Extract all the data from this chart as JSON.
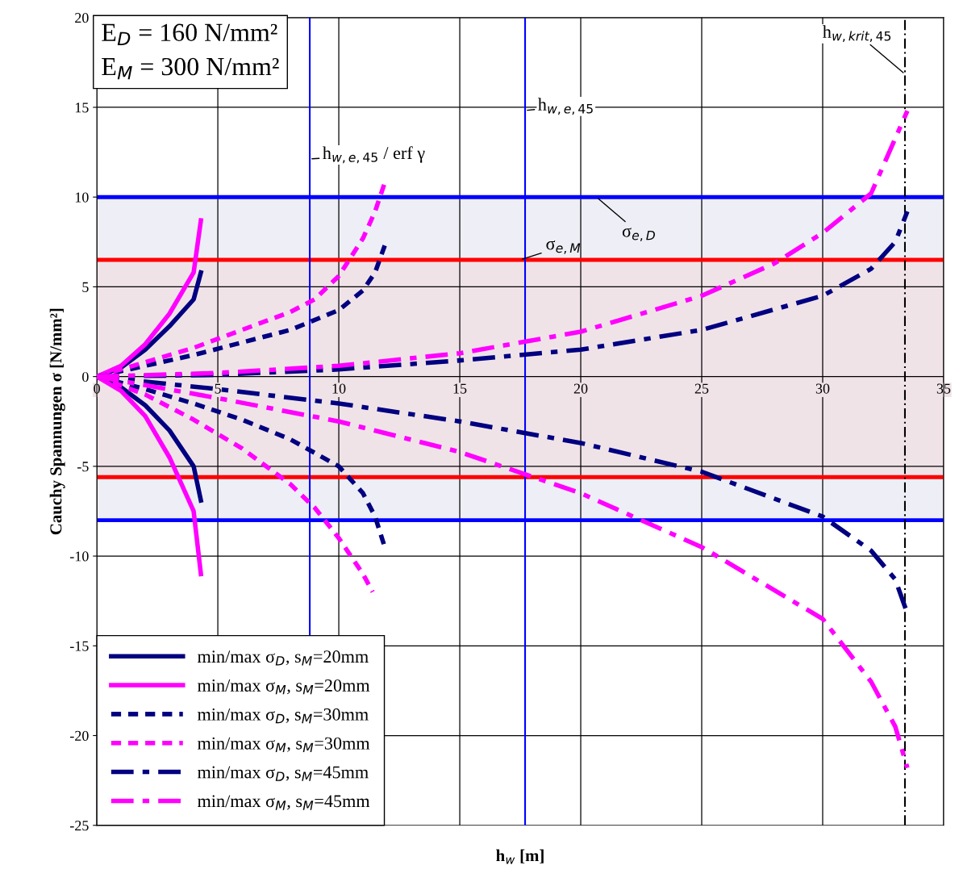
{
  "chart_data": {
    "type": "line",
    "xlabel": "h$_{w}$ [m]",
    "ylabel": "Cauchy Spannungen σ [N/mm²]",
    "xlim": [
      0,
      35
    ],
    "xticks": [
      0,
      5,
      10,
      15,
      20,
      25,
      30,
      35
    ],
    "ylim": [
      -25,
      20
    ],
    "yticks": [
      -25,
      -20,
      -15,
      -10,
      -5,
      0,
      5,
      10,
      15,
      20
    ],
    "grid": true,
    "legend": "bottom left",
    "marker": "none",
    "annotations": [
      "E$_{D}$ = 160 N/mm²",
      "E$_{M}$ = 300 N/mm²"
    ],
    "bands": [
      {
        "axis": "y",
        "from": -8,
        "to": 10,
        "color": "#eeeef7"
      },
      {
        "axis": "y",
        "from": -5.6,
        "to": 6.5,
        "color": "#f0e3e8"
      }
    ],
    "ref_lines": [
      {
        "axis": "y",
        "value": 10,
        "label": "σ$_{e,D}$",
        "color": "#0000ff",
        "line_style": "solid"
      },
      {
        "axis": "y",
        "value": 6.5,
        "label": "σ$_{e,M}$",
        "color": "#ff0000",
        "line_style": "solid"
      },
      {
        "axis": "y",
        "value": -5.6,
        "color": "#ff0000",
        "line_style": "solid"
      },
      {
        "axis": "y",
        "value": -8,
        "color": "#0000ff",
        "line_style": "solid"
      },
      {
        "axis": "x",
        "value": 8.8,
        "label": "h$_{w,e,45}$ / erf γ",
        "color": "#0000ff",
        "line_style": "solid"
      },
      {
        "axis": "x",
        "value": 17.7,
        "label": "h$_{w,e,45}$",
        "color": "#0000ff",
        "line_style": "solid"
      },
      {
        "axis": "x",
        "value": 33.4,
        "label": "h$_{w,krit,45}$",
        "color": "#000000",
        "line_style": "dashdot"
      }
    ],
    "series": [
      {
        "name": "min/max σ$_{D}$, s$_{M}$=20mm",
        "color": "#000080",
        "line_style": "solid",
        "x": [
          0,
          1,
          2,
          3,
          4,
          4.3
        ],
        "values": [
          0,
          0.5,
          1.5,
          2.8,
          4.3,
          5.8
        ]
      },
      {
        "color": "#000080",
        "line_style": "solid",
        "x": [
          0,
          1,
          2,
          3,
          4,
          4.3
        ],
        "values": [
          0,
          -0.6,
          -1.6,
          -3,
          -5,
          -6.9
        ]
      },
      {
        "name": "min/max σ$_{M}$, s$_{M}$=20mm",
        "color": "#ff00ff",
        "line_style": "solid",
        "x": [
          0,
          1,
          2,
          3,
          4,
          4.3
        ],
        "values": [
          0,
          0.6,
          1.8,
          3.5,
          5.8,
          8.7
        ]
      },
      {
        "color": "#ff00ff",
        "line_style": "solid",
        "x": [
          0,
          1,
          2,
          3,
          4,
          4.3
        ],
        "values": [
          0,
          -0.8,
          -2.2,
          -4.5,
          -7.5,
          -11
        ]
      },
      {
        "name": "min/max σ$_{D}$, s$_{M}$=30mm",
        "color": "#000080",
        "line_style": "dotted",
        "x": [
          0,
          2,
          4,
          6,
          8,
          10,
          11,
          11.5,
          11.9
        ],
        "values": [
          0,
          0.6,
          1.2,
          1.9,
          2.6,
          3.7,
          4.8,
          5.8,
          7.3
        ]
      },
      {
        "color": "#000080",
        "line_style": "dotted",
        "x": [
          0,
          2,
          4,
          6,
          8,
          10,
          11,
          11.5,
          11.9
        ],
        "values": [
          0,
          -0.7,
          -1.5,
          -2.4,
          -3.5,
          -5,
          -6.5,
          -7.8,
          -9.5
        ]
      },
      {
        "name": "min/max σ$_{M}$, s$_{M}$=30mm",
        "color": "#ff00ff",
        "line_style": "dotted",
        "x": [
          0,
          2,
          4,
          6,
          8,
          9,
          10,
          11,
          11.5,
          11.9
        ],
        "values": [
          0,
          0.8,
          1.6,
          2.6,
          3.6,
          4.3,
          5.6,
          7.7,
          9.2,
          10.8
        ]
      },
      {
        "color": "#ff00ff",
        "line_style": "dotted",
        "x": [
          0,
          2,
          4,
          6,
          8,
          9,
          10,
          11,
          11.4
        ],
        "values": [
          0,
          -1,
          -2.4,
          -4,
          -6,
          -7.3,
          -9,
          -11,
          -12
        ]
      },
      {
        "name": "min/max σ$_{D}$, s$_{M}$=45mm",
        "color": "#000080",
        "line_style": "dashed",
        "x": [
          0,
          5,
          10,
          15,
          20,
          25,
          30,
          32,
          33,
          33.5
        ],
        "values": [
          0,
          0.1,
          0.4,
          0.9,
          1.5,
          2.6,
          4.5,
          6,
          7.5,
          9.2
        ]
      },
      {
        "color": "#000080",
        "line_style": "dashed",
        "x": [
          0,
          5,
          10,
          15,
          20,
          25,
          30,
          32,
          33,
          33.5
        ],
        "values": [
          0,
          -0.7,
          -1.5,
          -2.5,
          -3.7,
          -5.3,
          -7.8,
          -9.7,
          -11.3,
          -13.2
        ]
      },
      {
        "name": "min/max σ$_{M}$, s$_{M}$=45mm",
        "color": "#ff00ff",
        "line_style": "dashed",
        "x": [
          0,
          5,
          10,
          15,
          20,
          25,
          28,
          30,
          32,
          33.5
        ],
        "values": [
          0,
          0.2,
          0.6,
          1.3,
          2.5,
          4.5,
          6.3,
          8,
          10.2,
          14.8
        ]
      },
      {
        "color": "#ff00ff",
        "line_style": "dashed",
        "x": [
          0,
          5,
          10,
          15,
          20,
          25,
          30,
          32,
          33,
          33.5
        ],
        "values": [
          0,
          -1.2,
          -2.5,
          -4.2,
          -6.5,
          -9.5,
          -13.5,
          -17,
          -19.5,
          -21.8
        ]
      }
    ]
  }
}
